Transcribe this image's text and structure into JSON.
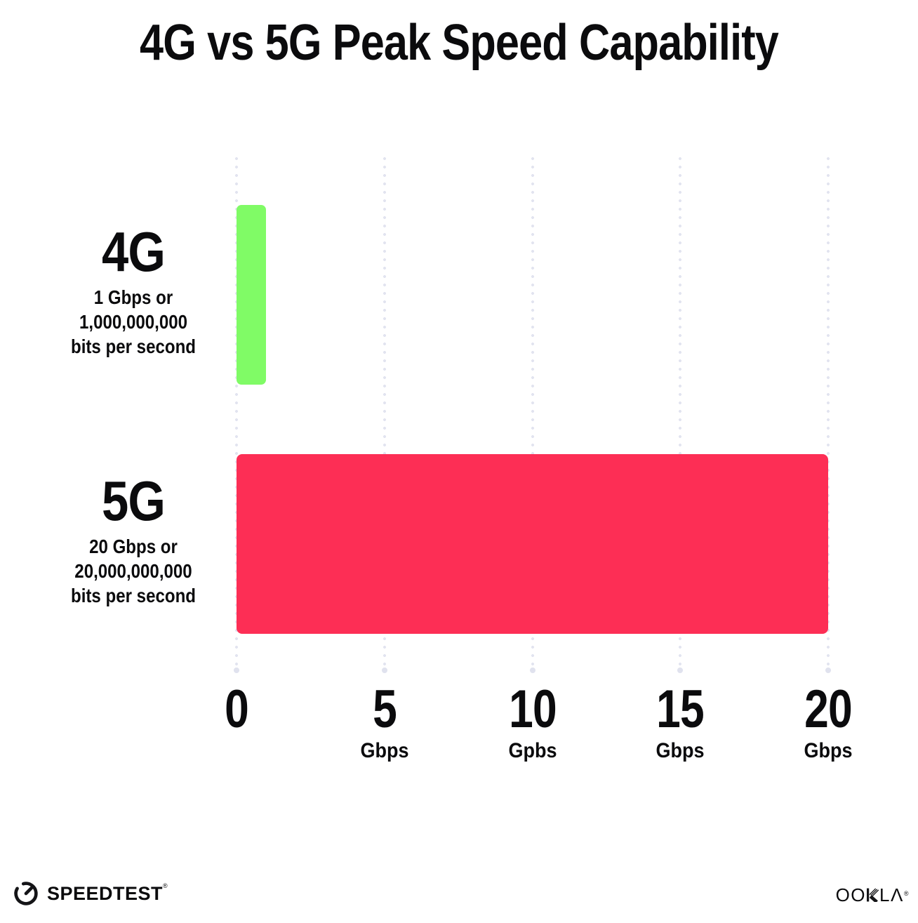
{
  "title": "4G vs 5G Peak Speed Capability",
  "chart_data": {
    "type": "bar",
    "orientation": "horizontal",
    "title": "4G vs 5G Peak Speed Capability",
    "categories": [
      "4G",
      "5G"
    ],
    "values": [
      1,
      20
    ],
    "value_unit": "Gbps",
    "xlabel": "",
    "ylabel": "",
    "xlim": [
      0,
      20
    ],
    "xticks": [
      0,
      5,
      10,
      15,
      20
    ],
    "grid": "dotted vertical gridlines, light lavender, larger terminal dot at bottom",
    "legend": "none",
    "series": [
      {
        "name": "4G",
        "value": 1,
        "color": "#80fb66",
        "description_lines": [
          "1 Gbps or",
          "1,000,000,000",
          "bits per second"
        ]
      },
      {
        "name": "5G",
        "value": 20,
        "color": "#fd2e55",
        "description_lines": [
          "20 Gbps or",
          "20,000,000,000",
          "bits per second"
        ]
      }
    ],
    "tick_labels": [
      {
        "number": "0",
        "unit": ""
      },
      {
        "number": "5",
        "unit": "Gbps"
      },
      {
        "number": "10",
        "unit": "Gpbs"
      },
      {
        "number": "15",
        "unit": "Gbps"
      },
      {
        "number": "20",
        "unit": "Gbps"
      }
    ]
  },
  "footer": {
    "speedtest_wordmark": "SPEEDTEST",
    "speedtest_trademark": "®",
    "ookla_wordmark": "OOKLA",
    "ookla_prefix": "OO",
    "ookla_suffix": "LΛ",
    "ookla_trademark": "®"
  },
  "colors": {
    "background": "#ffffff",
    "text": "#0b0b0d",
    "bar_4g": "#80fb66",
    "bar_5g": "#fd2e55",
    "gridline_dot": "#e2e4f0",
    "gridline_terminal_dot": "#e0e2ee"
  }
}
